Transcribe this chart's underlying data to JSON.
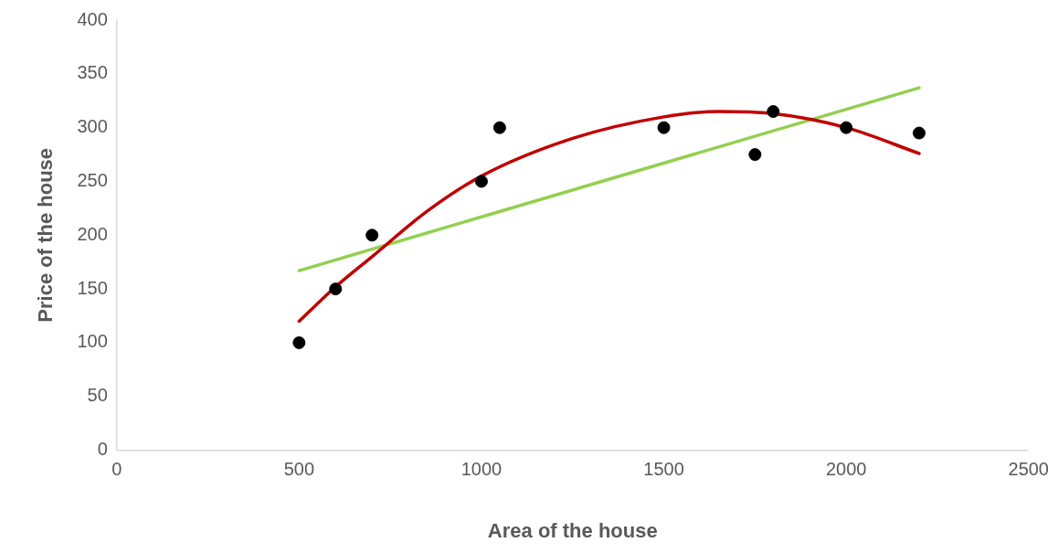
{
  "chart_data": {
    "type": "scatter",
    "xlabel": "Area of the house",
    "ylabel": "Price of the house",
    "xlim": [
      0,
      2500
    ],
    "xticks": [
      0,
      500,
      1000,
      1500,
      2000,
      2500
    ],
    "ylim": [
      0,
      400
    ],
    "yticks": [
      0,
      50,
      100,
      150,
      200,
      250,
      300,
      350,
      400
    ],
    "grid": false,
    "legend": false,
    "marker": "circle",
    "series": [
      {
        "type": "line",
        "marker": "none",
        "color": "#92d050",
        "x": [
          500,
          2200
        ],
        "values": [
          167,
          337
        ]
      },
      {
        "type": "line",
        "marker": "none",
        "color": "#c00000",
        "x": [
          500,
          600,
          700,
          850,
          1000,
          1250,
          1500,
          1650,
          1800,
          2000,
          2200
        ],
        "values": [
          120,
          152,
          180,
          222,
          255,
          290,
          310,
          315,
          313,
          300,
          276
        ]
      },
      {
        "color": "#000000",
        "x": [
          500,
          600,
          700,
          1000,
          1050,
          1500,
          1750,
          1800,
          2000,
          2200
        ],
        "values": [
          100,
          150,
          200,
          250,
          300,
          300,
          275,
          315,
          300,
          295
        ]
      }
    ]
  }
}
